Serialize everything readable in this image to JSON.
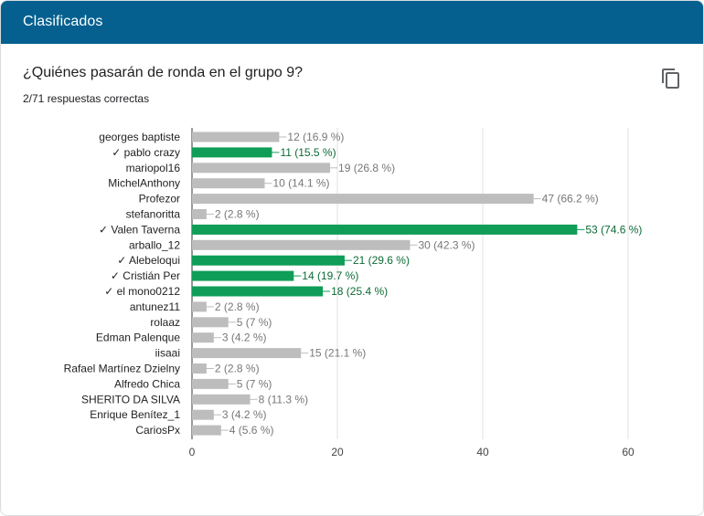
{
  "header": {
    "title": "Clasificados"
  },
  "question": {
    "title": "¿Quiénes pasarán de ronda en el grupo 9?",
    "subtitle": "2/71 respuestas correctas",
    "copy_icon": "copy-icon"
  },
  "colors": {
    "correct": "#0f9d58",
    "other": "#bdbdbd",
    "header": "#05608f"
  },
  "chart_data": {
    "type": "bar",
    "orientation": "horizontal",
    "xlim": [
      0,
      60
    ],
    "xticks": [
      "0",
      "20",
      "40",
      "60"
    ],
    "grid": true,
    "categories": [
      "georges baptiste",
      "✓ pablo crazy",
      "mariopol16",
      "MichelAnthony",
      "Profezor",
      "stefanoritta",
      "✓ Valen Taverna",
      "arballo_12",
      "✓ Alebeloqui",
      "✓ Cristián Per",
      "✓ el mono0212",
      "antunez11",
      "rolaaz",
      "Edman Palenque",
      "iisaai",
      "Rafael Martínez Dzielny",
      "Alfredo Chica",
      "SHERITO DA SILVA",
      "Enrique Benítez_1",
      "CariosPx"
    ],
    "values": [
      12,
      11,
      19,
      10,
      47,
      2,
      53,
      30,
      21,
      14,
      18,
      2,
      5,
      3,
      15,
      2,
      5,
      8,
      3,
      4
    ],
    "value_labels": [
      "12 (16.9 %)",
      "11 (15.5 %)",
      "19 (26.8 %)",
      "10 (14.1 %)",
      "47 (66.2 %)",
      "2 (2.8 %)",
      "53 (74.6 %)",
      "30 (42.3 %)",
      "21 (29.6 %)",
      "14 (19.7 %)",
      "18 (25.4 %)",
      "2 (2.8 %)",
      "5 (7 %)",
      "3 (4.2 %)",
      "15 (21.1 %)",
      "2 (2.8 %)",
      "5 (7 %)",
      "8 (11.3 %)",
      "3 (4.2 %)",
      "4 (5.6 %)"
    ],
    "correct": [
      false,
      true,
      false,
      false,
      false,
      false,
      true,
      false,
      true,
      true,
      true,
      false,
      false,
      false,
      false,
      false,
      false,
      false,
      false,
      false
    ]
  }
}
